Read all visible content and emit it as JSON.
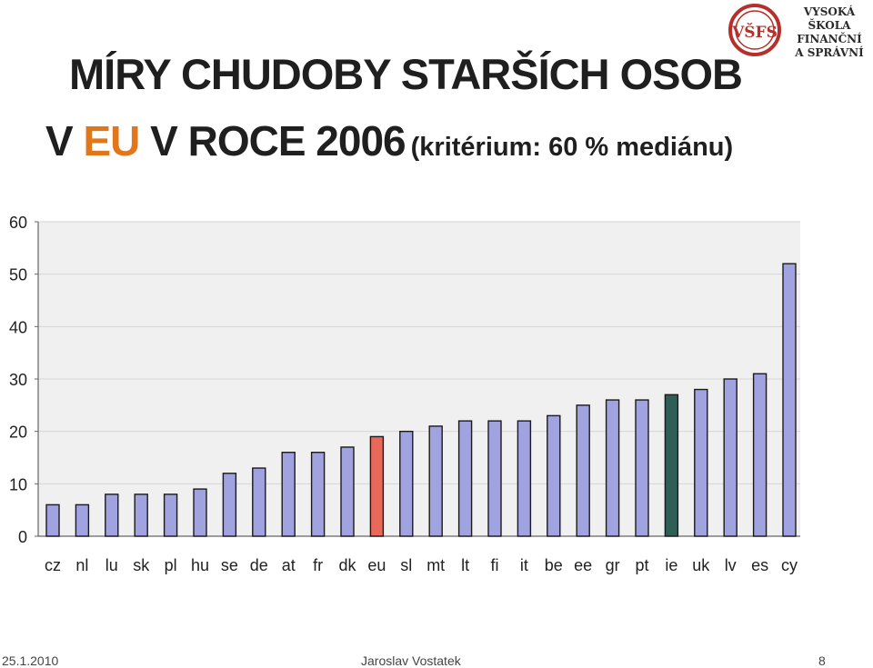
{
  "header": {
    "title_line1": "MÍRY CHUDOBY STARŠÍCH OSOB",
    "title_line2_prefix": "V ",
    "title_line2_highlight": "EU",
    "title_line2_suffix": " V ROCE 2006",
    "subtitle": "(kritérium: 60 % mediánu)",
    "highlight_color": "#e2761b"
  },
  "logo": {
    "monogram": "VŠFS",
    "line1": "VYSOKÁ ŠKOLA",
    "line2": "FINANČNÍ",
    "line3": "A SPRÁVNÍ",
    "color": "#b5302a"
  },
  "footer": {
    "date": "25.1.2010",
    "author": "Jaroslav Vostatek",
    "page": "8"
  },
  "chart_data": {
    "type": "bar",
    "categories": [
      "cz",
      "nl",
      "lu",
      "sk",
      "pl",
      "hu",
      "se",
      "de",
      "at",
      "fr",
      "dk",
      "eu",
      "sl",
      "mt",
      "lt",
      "fi",
      "it",
      "be",
      "ee",
      "gr",
      "pt",
      "ie",
      "uk",
      "lv",
      "es",
      "cy"
    ],
    "values": [
      6,
      6,
      8,
      8,
      8,
      9,
      12,
      13,
      16,
      16,
      17,
      19,
      20,
      21,
      22,
      22,
      22,
      23,
      25,
      26,
      26,
      27,
      28,
      30,
      31,
      52
    ],
    "colors": {
      "default": "#a0a3df",
      "eu": "#e8685a",
      "ie": "#2e5e56",
      "plot_background": "#f0f0f0"
    },
    "ylim": [
      0,
      60
    ],
    "yticks": [
      0,
      10,
      20,
      30,
      40,
      50,
      60
    ],
    "grid": true
  }
}
